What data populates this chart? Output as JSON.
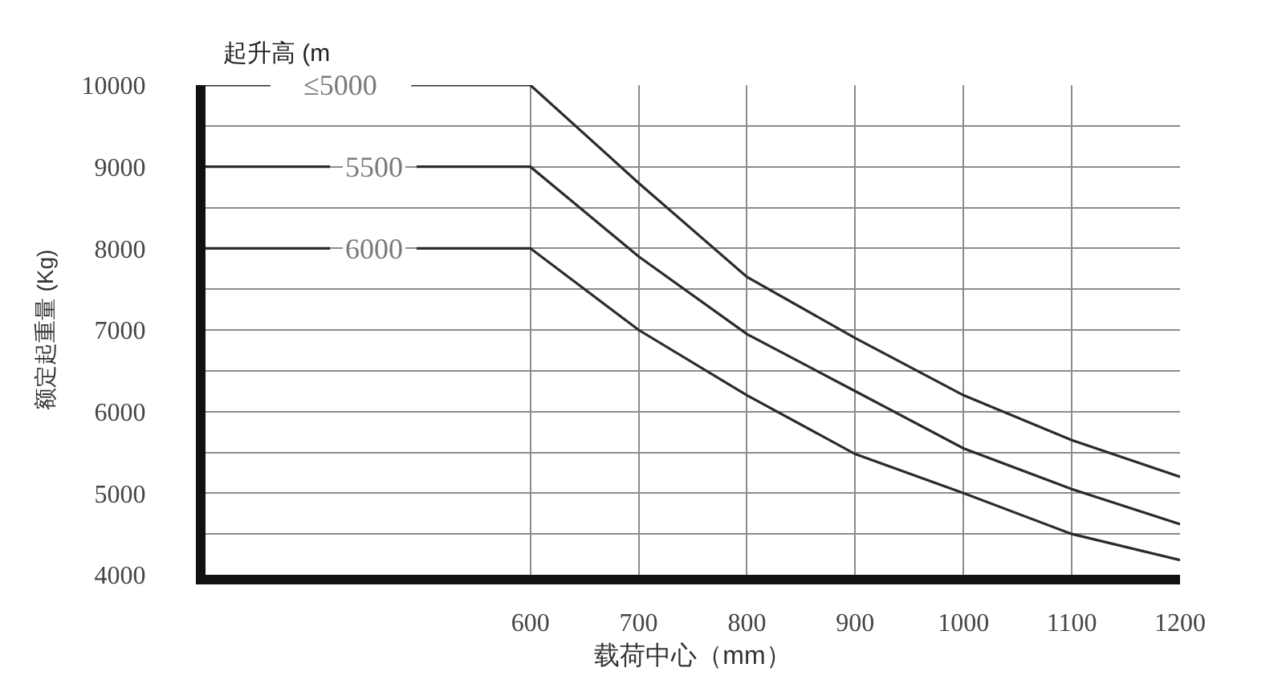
{
  "chart_data": {
    "type": "line",
    "xlabel": "载荷中心（mm）",
    "ylabel": "额定起重量 (Kg)",
    "annotations": [
      "起升高 (m"
    ],
    "xlim": [
      300,
      1200
    ],
    "xticks": [
      600,
      700,
      800,
      900,
      1000,
      1100,
      1200
    ],
    "ylim": [
      4000,
      10000
    ],
    "yticks": [
      4000,
      {
        "value": 4500,
        "label": null
      },
      5000,
      {
        "value": 5500,
        "label": null
      },
      6000,
      {
        "value": 6500,
        "label": null
      },
      7000,
      {
        "value": 7500,
        "label": null
      },
      8000,
      {
        "value": 8500,
        "label": null
      },
      9000,
      {
        "value": 9500,
        "label": null
      },
      10000
    ],
    "grid": true,
    "legend": false,
    "marker": "none",
    "line_style": "solid",
    "series": [
      {
        "name": "≤5000",
        "color": "#2b2b2b",
        "x": [
          300,
          360,
          425,
          490,
          600,
          700,
          800,
          900,
          1000,
          1100,
          1200
        ],
        "values": [
          10000,
          10000,
          null,
          10000,
          10000,
          8800,
          7650,
          6900,
          6200,
          5650,
          5200
        ]
      },
      {
        "name": "5500",
        "color": "#2b2b2b",
        "x": [
          300,
          415,
          455,
          495,
          600,
          700,
          800,
          900,
          1000,
          1100,
          1200
        ],
        "values": [
          9000,
          9000,
          null,
          9000,
          9000,
          7900,
          6950,
          6250,
          5550,
          5050,
          4620
        ]
      },
      {
        "name": "6000",
        "color": "#2b2b2b",
        "x": [
          300,
          415,
          455,
          495,
          600,
          700,
          800,
          900,
          1000,
          1100,
          1200
        ],
        "values": [
          8000,
          8000,
          null,
          8000,
          8000,
          7000,
          6200,
          5480,
          5000,
          4500,
          4180
        ]
      }
    ]
  }
}
